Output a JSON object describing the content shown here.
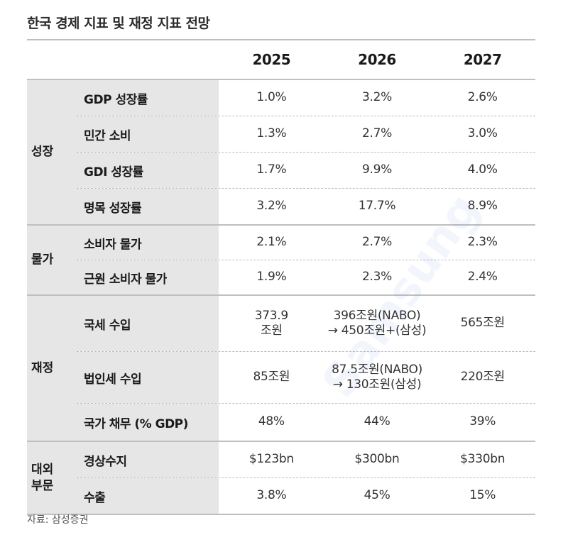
{
  "title": "한국 경제 지표 및 재정 지표 전망",
  "years": [
    "2025",
    "2026",
    "2027"
  ],
  "groups": {
    "growth": {
      "label": "성장",
      "rows": [
        {
          "label": "GDP 성장률",
          "v": [
            "1.0%",
            "3.2%",
            "2.6%"
          ]
        },
        {
          "label": "민간 소비",
          "v": [
            "1.3%",
            "2.7%",
            "3.0%"
          ]
        },
        {
          "label": "GDI 성장률",
          "v": [
            "1.7%",
            "9.9%",
            "4.0%"
          ]
        },
        {
          "label": "명목 성장률",
          "v": [
            "3.2%",
            "17.7%",
            "8.9%"
          ]
        }
      ]
    },
    "prices": {
      "label": "물가",
      "rows": [
        {
          "label": "소비자 물가",
          "v": [
            "2.1%",
            "2.7%",
            "2.3%"
          ]
        },
        {
          "label": "근원 소비자 물가",
          "v": [
            "1.9%",
            "2.3%",
            "2.4%"
          ]
        }
      ]
    },
    "fiscal": {
      "label": "재정",
      "rows": [
        {
          "label": "국세 수입",
          "v": [
            "373.9\n조원",
            "396조원(NABO)\n→ 450조원+(삼성)",
            "565조원"
          ]
        },
        {
          "label": "법인세 수입",
          "v": [
            "85조원",
            "87.5조원(NABO)\n→ 130조원(삼성)",
            "220조원"
          ]
        },
        {
          "label": "국가 채무 (% GDP)",
          "v": [
            "48%",
            "44%",
            "39%"
          ]
        }
      ]
    },
    "external": {
      "label": "대외\n부문",
      "rows": [
        {
          "label": "경상수지",
          "v": [
            "$123bn",
            "$300bn",
            "$330bn"
          ]
        },
        {
          "label": "수출",
          "v": [
            "3.8%",
            "45%",
            "15%"
          ]
        }
      ]
    }
  },
  "source": "자료: 삼성증권",
  "watermark": "Samsung"
}
